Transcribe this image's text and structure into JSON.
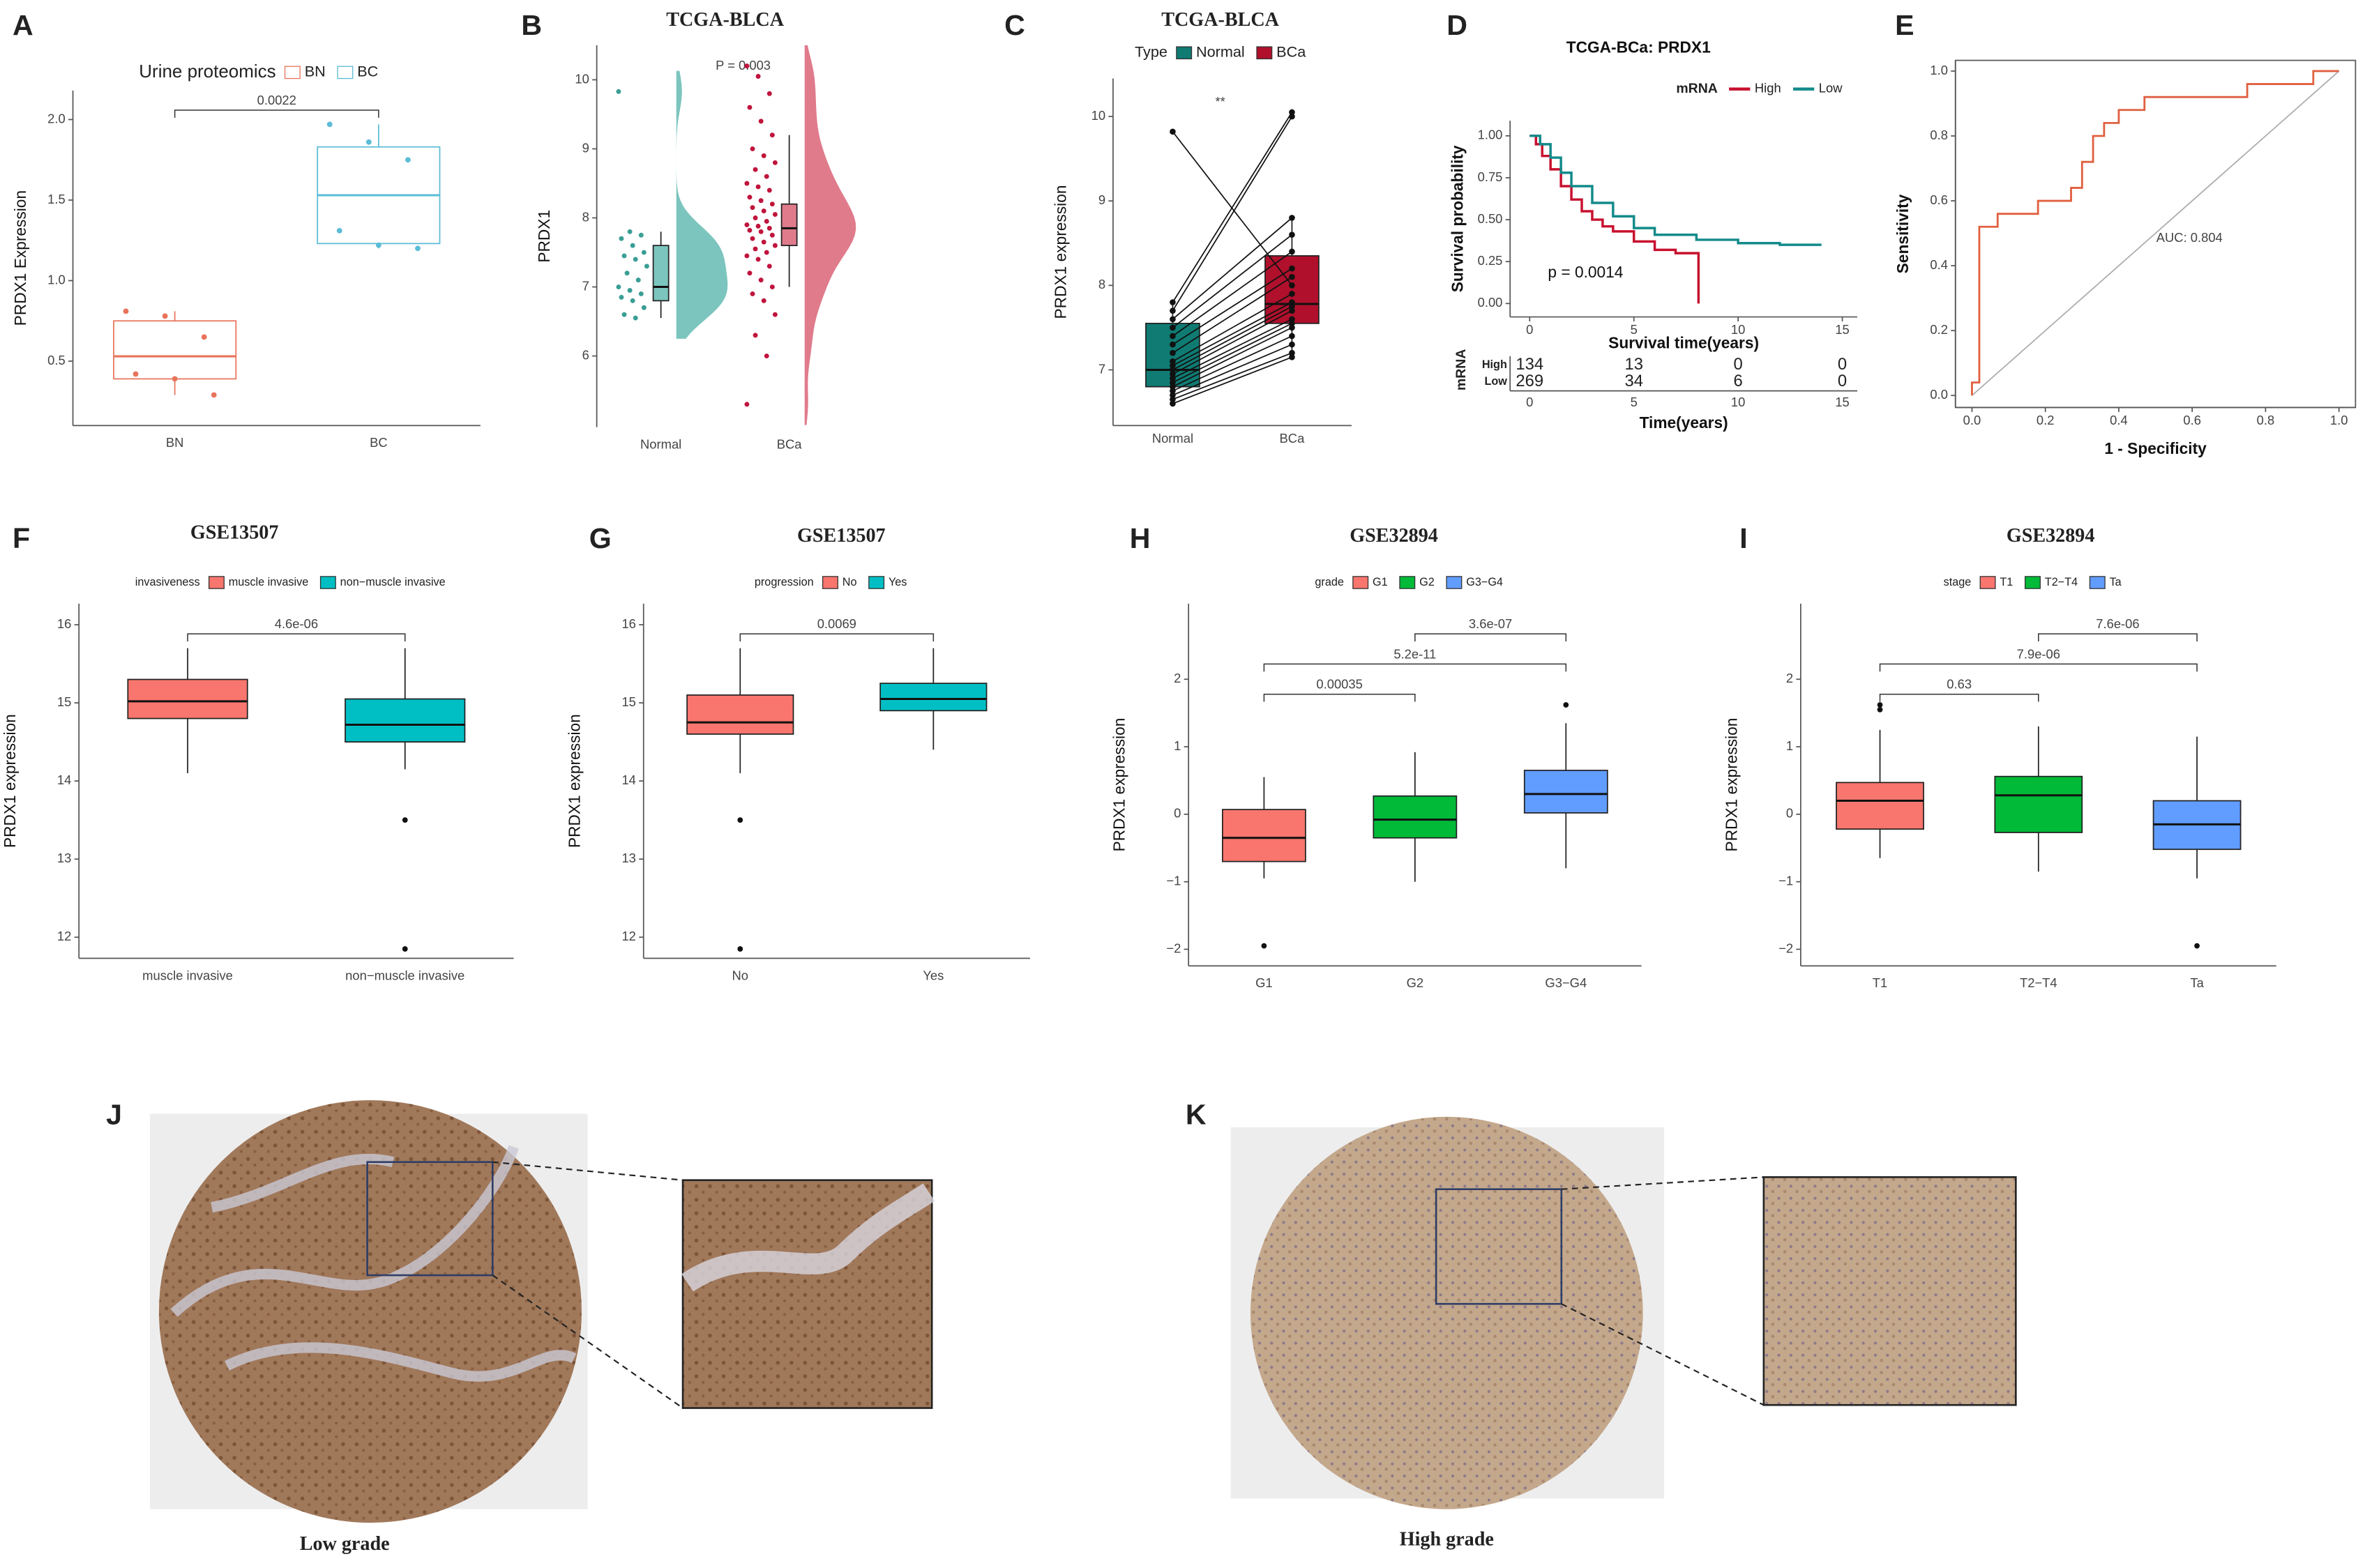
{
  "chart_data": [
    {
      "label": "A",
      "type": "box",
      "legend_title": "Urine proteomics",
      "ylabel": "PRDX1 Expression",
      "categories": [
        "BN",
        "BC"
      ],
      "colors": [
        "#e8735a",
        "#5bbcd6"
      ],
      "filled": false,
      "ylim": [
        0.1,
        2.18
      ],
      "yticks": [
        0.5,
        {
          "value": 1,
          "label": "1.0"
        },
        1.5,
        {
          "value": 2,
          "label": "2.0"
        }
      ],
      "boxes": [
        {
          "min": 0.29,
          "q1": 0.39,
          "median": 0.53,
          "q3": 0.75,
          "max": 0.81
        },
        {
          "min": 1.2,
          "q1": 1.23,
          "median": 1.53,
          "q3": 1.83,
          "max": 1.97
        }
      ],
      "points": [
        [
          0.81,
          0.78,
          0.65,
          0.42,
          0.39,
          0.29
        ],
        [
          1.97,
          1.86,
          1.75,
          1.31,
          1.22,
          1.2
        ]
      ],
      "comparisons": [
        {
          "pair": [
            0,
            1
          ],
          "label": "0.0022"
        }
      ]
    },
    {
      "label": "B",
      "type": "raincloud",
      "title": "TCGA-BLCA",
      "ylabel": "PRDX1",
      "annotation": "P = 0.003",
      "categories": [
        "Normal",
        "BCa"
      ],
      "colors": [
        "#3a9e95",
        "#c0143c"
      ],
      "fills": [
        "#7cc5be",
        "#e07b8c"
      ],
      "ylim": [
        4.97,
        10.5
      ],
      "yticks": [
        6,
        7,
        8,
        9,
        10
      ],
      "boxes": [
        {
          "min": 6.55,
          "q1": 6.8,
          "median": 7.0,
          "q3": 7.6,
          "max": 7.8
        },
        {
          "min": 7.0,
          "q1": 7.6,
          "median": 7.85,
          "q3": 8.2,
          "max": 9.2
        }
      ],
      "points": [
        [
          9.83,
          7.8,
          7.75,
          7.7,
          7.6,
          7.5,
          7.45,
          7.4,
          7.3,
          7.2,
          7.1,
          7.0,
          6.95,
          6.9,
          6.85,
          6.8,
          6.7,
          6.6,
          6.55
        ],
        [
          10.2,
          10.05,
          9.8,
          9.6,
          9.4,
          9.2,
          9.0,
          8.9,
          8.8,
          8.7,
          8.6,
          8.5,
          8.45,
          8.4,
          8.3,
          8.25,
          8.2,
          8.15,
          8.1,
          8.05,
          8.0,
          7.95,
          7.9,
          7.88,
          7.85,
          7.82,
          7.8,
          7.75,
          7.7,
          7.65,
          7.6,
          7.55,
          7.5,
          7.45,
          7.4,
          7.3,
          7.2,
          7.1,
          7.0,
          6.9,
          6.8,
          6.6,
          6.3,
          6.0,
          5.3
        ]
      ]
    },
    {
      "label": "C",
      "type": "paired",
      "title": "TCGA-BLCA",
      "legend_title": "Type",
      "ylabel": "PRDX1 expression",
      "annotation": "**",
      "categories": [
        "Normal",
        "BCa"
      ],
      "colors": [
        "#0f7b73",
        "#b0102c"
      ],
      "ylim": [
        6.34,
        10.45
      ],
      "yticks": [
        7,
        8,
        9,
        10
      ],
      "boxes": [
        {
          "min": 6.6,
          "q1": 6.8,
          "median": 7.0,
          "q3": 7.55,
          "max": 7.8
        },
        {
          "min": 7.15,
          "q1": 7.55,
          "median": 7.78,
          "q3": 8.35,
          "max": 8.8
        }
      ],
      "points": [
        [
          9.82,
          7.8,
          7.7,
          7.6,
          7.5,
          7.4,
          7.3,
          7.2,
          7.1,
          7.05,
          7.0,
          6.95,
          6.9,
          6.85,
          6.8,
          6.75,
          6.7,
          6.65,
          6.6
        ],
        [
          8.0,
          10.05,
          10.0,
          8.8,
          8.6,
          8.4,
          8.2,
          8.1,
          7.9,
          7.8,
          7.75,
          7.7,
          7.6,
          7.55,
          7.5,
          7.4,
          7.3,
          7.2,
          7.15
        ]
      ]
    },
    {
      "label": "D",
      "type": "survival",
      "title": "TCGA-BCa: PRDX1",
      "legend_title": "mRNA",
      "ylabel": "Survival probability",
      "xlabel": "Survival time(years)",
      "annotation": "p = 0.0014",
      "xlim": [
        -0.94,
        15.72
      ],
      "xticks": [
        0,
        5,
        10,
        15
      ],
      "ylim": [
        -0.08,
        1.09
      ],
      "yticks": [
        {
          "value": 0,
          "label": "0.00"
        },
        0.25,
        {
          "value": 0.5,
          "label": "0.50"
        },
        0.75,
        {
          "value": 1,
          "label": "1.00"
        }
      ],
      "series": [
        {
          "name": "High",
          "color": "#c8102e",
          "x": [
            0,
            0.3,
            0.6,
            1,
            1.5,
            2,
            2.5,
            3,
            3.5,
            4,
            5,
            6,
            7,
            8,
            8.1
          ],
          "values": [
            1,
            0.95,
            0.88,
            0.8,
            0.7,
            0.62,
            0.55,
            0.5,
            0.46,
            0.43,
            0.37,
            0.32,
            0.3,
            0.3,
            0
          ]
        },
        {
          "name": "Low",
          "color": "#138a8a",
          "x": [
            0,
            0.5,
            1,
            1.5,
            2,
            3,
            4,
            5,
            6,
            8,
            10,
            12,
            14
          ],
          "values": [
            1,
            0.95,
            0.87,
            0.78,
            0.7,
            0.6,
            0.52,
            0.45,
            0.41,
            0.38,
            0.36,
            0.35,
            0.35
          ]
        }
      ],
      "risk_table": {
        "title": "mRNA",
        "xlabel": "Time(years)",
        "rows": [
          {
            "name": "High",
            "values": [
              134,
              13,
              0,
              0
            ]
          },
          {
            "name": "Low",
            "values": [
              269,
              34,
              6,
              0
            ]
          }
        ]
      }
    },
    {
      "label": "E",
      "type": "roc",
      "ylabel": "Sensitivity",
      "xlabel": "1 - Specificity",
      "annotation": "AUC: 0.804",
      "color": "#e06040",
      "xlim": [
        -0.045,
        1.045
      ],
      "ylim": [
        -0.037,
        1.033
      ],
      "xticks": [
        {
          "value": 0,
          "label": "0.0"
        },
        0.2,
        0.4,
        0.6,
        0.8,
        {
          "value": 1,
          "label": "1.0"
        }
      ],
      "yticks": [
        {
          "value": 0,
          "label": "0.0"
        },
        0.2,
        0.4,
        0.6,
        0.8,
        {
          "value": 1,
          "label": "1.0"
        }
      ],
      "x": [
        0,
        0,
        0.02,
        0.02,
        0.07,
        0.07,
        0.18,
        0.18,
        0.27,
        0.27,
        0.3,
        0.3,
        0.33,
        0.33,
        0.36,
        0.36,
        0.4,
        0.4,
        0.47,
        0.47,
        0.75,
        0.75,
        0.93,
        0.93,
        1
      ],
      "values": [
        0,
        0.04,
        0.04,
        0.52,
        0.52,
        0.56,
        0.56,
        0.6,
        0.6,
        0.64,
        0.64,
        0.72,
        0.72,
        0.8,
        0.8,
        0.84,
        0.84,
        0.88,
        0.88,
        0.92,
        0.92,
        0.96,
        0.96,
        1,
        1
      ]
    },
    {
      "label": "F",
      "type": "box",
      "title": "GSE13507",
      "legend_title": "invasiveness",
      "ylabel": "PRDX1 expression",
      "categories": [
        "muscle invasive",
        "non−muscle invasive"
      ],
      "colors": [
        "#f8766d",
        "#00bfc4"
      ],
      "filled": true,
      "ylim": [
        11.73,
        16.27
      ],
      "yticks": [
        12,
        13,
        14,
        15,
        16
      ],
      "boxes": [
        {
          "min": 14.1,
          "q1": 14.8,
          "median": 15.02,
          "q3": 15.3,
          "max": 15.7
        },
        {
          "min": 14.15,
          "q1": 14.5,
          "median": 14.72,
          "q3": 15.05,
          "max": 15.7,
          "outliers": [
            13.5,
            11.85
          ]
        }
      ],
      "comparisons": [
        {
          "pair": [
            0,
            1
          ],
          "label": "4.6e-06"
        }
      ]
    },
    {
      "label": "G",
      "type": "box",
      "title": "GSE13507",
      "legend_title": "progression",
      "ylabel": "PRDX1 expression",
      "categories": [
        "No",
        "Yes"
      ],
      "colors": [
        "#f8766d",
        "#00bfc4"
      ],
      "filled": true,
      "ylim": [
        11.73,
        16.27
      ],
      "yticks": [
        12,
        13,
        14,
        15,
        16
      ],
      "boxes": [
        {
          "min": 14.1,
          "q1": 14.6,
          "median": 14.75,
          "q3": 15.1,
          "max": 15.7,
          "outliers": [
            13.5,
            11.85
          ]
        },
        {
          "min": 14.4,
          "q1": 14.9,
          "median": 15.05,
          "q3": 15.25,
          "max": 15.7
        }
      ],
      "comparisons": [
        {
          "pair": [
            0,
            1
          ],
          "label": "0.0069"
        }
      ]
    },
    {
      "label": "H",
      "type": "box",
      "title": "GSE32894",
      "legend_title": "grade",
      "ylabel": "PRDX1 expression",
      "categories": [
        "G1",
        "G2",
        "G3−G4"
      ],
      "colors": [
        "#f8766d",
        "#00ba38",
        "#619cff"
      ],
      "filled": true,
      "ylim": [
        -2.246,
        3.12
      ],
      "yticks": [
        {
          "value": -2,
          "label": "−2"
        },
        {
          "value": -1,
          "label": "−1"
        },
        0,
        1,
        2
      ],
      "boxes": [
        {
          "min": -0.95,
          "q1": -0.7,
          "median": -0.35,
          "q3": 0.07,
          "max": 0.55,
          "outliers": [
            -1.95
          ]
        },
        {
          "min": -1.0,
          "q1": -0.35,
          "median": -0.08,
          "q3": 0.27,
          "max": 0.92
        },
        {
          "min": -0.8,
          "q1": 0.02,
          "median": 0.3,
          "q3": 0.65,
          "max": 1.35,
          "outliers": [
            1.62
          ]
        }
      ],
      "comparisons": [
        {
          "pair": [
            0,
            1
          ],
          "label": "0.00035"
        },
        {
          "pair": [
            0,
            2
          ],
          "label": "5.2e-11"
        },
        {
          "pair": [
            1,
            2
          ],
          "label": "3.6e-07"
        }
      ]
    },
    {
      "label": "I",
      "type": "box",
      "title": "GSE32894",
      "legend_title": "stage",
      "ylabel": "PRDX1 expression",
      "categories": [
        "T1",
        "T2−T4",
        "Ta"
      ],
      "colors": [
        "#f8766d",
        "#00ba38",
        "#619cff"
      ],
      "filled": true,
      "ylim": [
        -2.246,
        3.12
      ],
      "yticks": [
        {
          "value": -2,
          "label": "−2"
        },
        {
          "value": -1,
          "label": "−1"
        },
        0,
        1,
        2
      ],
      "boxes": [
        {
          "min": -0.65,
          "q1": -0.22,
          "median": 0.2,
          "q3": 0.47,
          "max": 1.25,
          "outliers": [
            1.55,
            1.62
          ]
        },
        {
          "min": -0.85,
          "q1": -0.27,
          "median": 0.28,
          "q3": 0.56,
          "max": 1.3
        },
        {
          "min": -0.95,
          "q1": -0.52,
          "median": -0.15,
          "q3": 0.2,
          "max": 1.15,
          "outliers": [
            -1.95
          ]
        }
      ],
      "comparisons": [
        {
          "pair": [
            0,
            1
          ],
          "label": "0.63"
        },
        {
          "pair": [
            0,
            2
          ],
          "label": "7.9e-06"
        },
        {
          "pair": [
            1,
            2
          ],
          "label": "7.6e-06"
        }
      ]
    }
  ],
  "images": [
    {
      "label": "J",
      "caption": "Low grade"
    },
    {
      "label": "K",
      "caption": "High grade"
    }
  ]
}
